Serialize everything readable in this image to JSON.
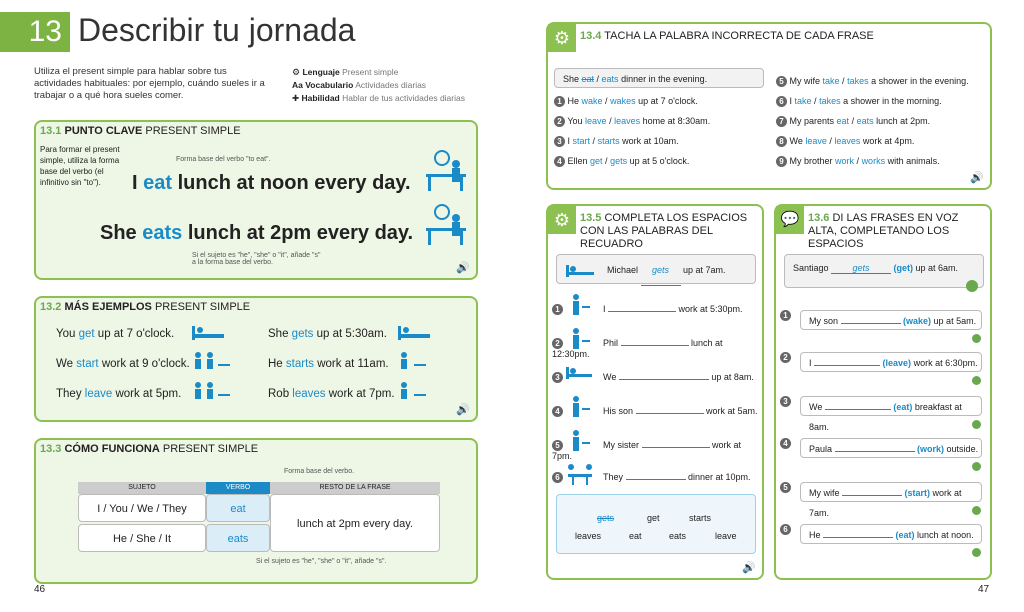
{
  "left_page": {
    "unit_number": "13",
    "title": "Describir tu jornada",
    "intro": "Utiliza el present simple para hablar sobre tus actividades habituales: por ejemplo, cuándo sueles ir a trabajar o a qué hora sueles comer.",
    "legend": [
      {
        "label": "Lenguaje",
        "value": "Present simple",
        "icon": "gears-icon"
      },
      {
        "label": "Vocabulario",
        "value": "Actividades diarias",
        "icon": "aa-icon"
      },
      {
        "label": "Habilidad",
        "value": "Hablar de tus actividades diarias",
        "icon": "puzzle-icon"
      }
    ],
    "page_number": "46"
  },
  "s13_1": {
    "number": "13.1",
    "title_bold": "PUNTO CLAVE",
    "title_rest": "PRESENT SIMPLE",
    "side_note": "Para formar el present simple, utiliza la forma base del verbo (el infinitivo sin \"to\").",
    "anno1": "Forma base del verbo \"to eat\".",
    "s1_a": "I ",
    "s1_verb": "eat",
    "s1_b": " lunch at noon every day.",
    "s2_a": "She ",
    "s2_verb": "eats",
    "s2_b": " lunch at 2pm every day.",
    "anno2": "Si el sujeto es \"he\", \"she\" o \"it\", añade \"s\" a la forma base del verbo."
  },
  "s13_2": {
    "number": "13.2",
    "title_bold": "MÁS EJEMPLOS",
    "title_rest": "PRESENT SIMPLE",
    "examples": [
      {
        "a": "You ",
        "v": "get",
        "b": " up at 7 o'clock."
      },
      {
        "a": "She ",
        "v": "gets",
        "b": " up at 5:30am."
      },
      {
        "a": "We ",
        "v": "start",
        "b": " work at 9 o'clock."
      },
      {
        "a": "He ",
        "v": "starts",
        "b": " work at 11am."
      },
      {
        "a": "They ",
        "v": "leave",
        "b": " work at 5pm."
      },
      {
        "a": "Rob ",
        "v": "leaves",
        "b": " work at 7pm."
      }
    ]
  },
  "s13_3": {
    "number": "13.3",
    "title_bold": "CÓMO FUNCIONA",
    "title_rest": "PRESENT SIMPLE",
    "anno_top": "Forma base del verbo.",
    "col_subject": "SUJETO",
    "col_verb": "VERBO",
    "col_rest": "RESTO DE LA FRASE",
    "row1_subject": "I / You / We / They",
    "row1_verb": "eat",
    "row2_subject": "He / She / It",
    "row2_verb": "eats",
    "rest": "lunch at 2pm every day.",
    "anno_bottom": "Si el sujeto es \"he\", \"she\" o \"it\", añade \"s\"."
  },
  "s13_4": {
    "number": "13.4",
    "title": "TACHA LA PALABRA INCORRECTA DE CADA FRASE",
    "example": {
      "a": "She ",
      "wrong": "eat",
      "sep": " / ",
      "right": "eats",
      "b": " dinner in the evening."
    },
    "items_left": [
      {
        "n": "1",
        "a": "He ",
        "w1": "wake",
        "w2": "wakes",
        "b": " up at 7 o'clock."
      },
      {
        "n": "2",
        "a": "You ",
        "w1": "leave",
        "w2": "leaves",
        "b": " home at 8:30am."
      },
      {
        "n": "3",
        "a": "I ",
        "w1": "start",
        "w2": "starts",
        "b": " work at 10am."
      },
      {
        "n": "4",
        "a": "Ellen ",
        "w1": "get",
        "w2": "gets",
        "b": " up at 5 o'clock."
      }
    ],
    "items_right": [
      {
        "n": "5",
        "a": "My wife ",
        "w1": "take",
        "w2": "takes",
        "b": " a shower in the evening."
      },
      {
        "n": "6",
        "a": "I ",
        "w1": "take",
        "w2": "takes",
        "b": " a shower in the morning."
      },
      {
        "n": "7",
        "a": "My parents ",
        "w1": "eat",
        "w2": "eats",
        "b": " lunch at 2pm."
      },
      {
        "n": "8",
        "a": "We ",
        "w1": "leave",
        "w2": "leaves",
        "b": " work at 4pm."
      },
      {
        "n": "9",
        "a": "My brother ",
        "w1": "work",
        "w2": "works",
        "b": " with animals."
      }
    ]
  },
  "s13_5": {
    "number": "13.5",
    "title": "COMPLETA LOS ESPACIOS CON LAS PALABRAS DEL RECUADRO",
    "example": {
      "a": "Michael ",
      "ans": "gets",
      "b": " up at 7am."
    },
    "items": [
      {
        "n": "1",
        "a": "I ",
        "b": " work at 5:30pm."
      },
      {
        "n": "2",
        "a": "Phil ",
        "b": " lunch at 12:30pm."
      },
      {
        "n": "3",
        "a": "We ",
        "b": " up at 8am."
      },
      {
        "n": "4",
        "a": "His son ",
        "b": " work at 5am."
      },
      {
        "n": "5",
        "a": "My sister ",
        "b": " work at 7pm."
      },
      {
        "n": "6",
        "a": "They ",
        "b": " dinner at 10pm."
      }
    ],
    "bank_row1": [
      "gets",
      "get",
      "starts"
    ],
    "bank_row2": [
      "leaves",
      "eat",
      "eats",
      "leave"
    ]
  },
  "s13_6": {
    "number": "13.6",
    "title": "DI LAS FRASES EN VOZ ALTA, COMPLETANDO LOS ESPACIOS",
    "example": {
      "a": "Santiago ",
      "ans": "gets",
      "hint": " (get)",
      "b": " up at 6am."
    },
    "items": [
      {
        "n": "1",
        "a": "My son ",
        "hint": "(wake)",
        "b": " up at 5am."
      },
      {
        "n": "2",
        "a": "I ",
        "hint": "(leave)",
        "b": " work at 6:30pm."
      },
      {
        "n": "3",
        "a": "We ",
        "hint": "(eat)",
        "b": " breakfast at 8am."
      },
      {
        "n": "4",
        "a": "Paula ",
        "hint": "(work)",
        "b": " outside."
      },
      {
        "n": "5",
        "a": "My wife ",
        "hint": "(start)",
        "b": " work at 7am."
      },
      {
        "n": "6",
        "a": "He ",
        "hint": "(eat)",
        "b": " lunch at noon."
      }
    ]
  },
  "right_page": {
    "page_number": "47"
  },
  "colors": {
    "accent_green": "#8cc152",
    "verb_blue": "#1b8bc7"
  }
}
